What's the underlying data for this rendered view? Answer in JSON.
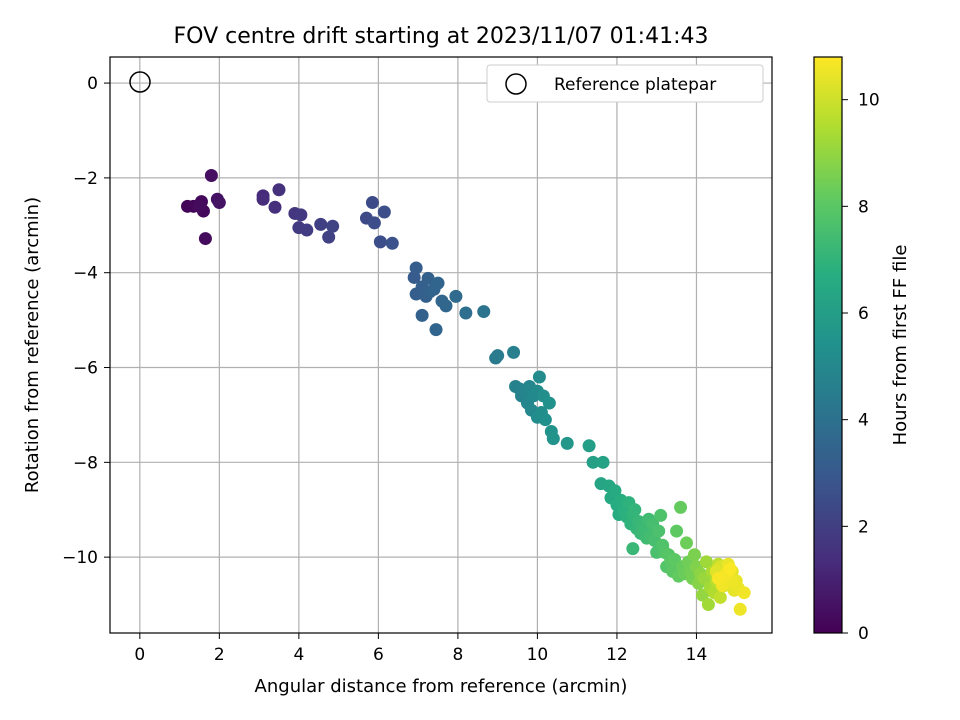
{
  "chart_data": {
    "type": "scatter",
    "title": "FOV centre drift starting at 2023/11/07 01:41:43",
    "xlabel": "Angular distance from reference (arcmin)",
    "ylabel": "Rotation from reference (arcmin)",
    "xlim": [
      -0.75,
      15.9
    ],
    "ylim": [
      -11.6,
      0.55
    ],
    "xticks": [
      0,
      2,
      4,
      6,
      8,
      10,
      12,
      14
    ],
    "yticks": [
      0,
      -2,
      -4,
      -6,
      -8,
      -10
    ],
    "xtick_labels": [
      "0",
      "2",
      "4",
      "6",
      "8",
      "10",
      "12",
      "14"
    ],
    "ytick_labels": [
      "0",
      "−2",
      "−4",
      "−6",
      "−8",
      "−10"
    ],
    "grid": true,
    "legend": {
      "position": "top-right",
      "entries": [
        "Reference platepar"
      ]
    },
    "reference_point": {
      "x": 0,
      "y": 0,
      "marker": "open-circle"
    },
    "colorbar": {
      "label": "Hours from first FF file",
      "range": [
        0,
        10.8
      ],
      "ticks": [
        0,
        2,
        4,
        6,
        8,
        10
      ],
      "tick_labels": [
        "0",
        "2",
        "4",
        "6",
        "8",
        "10"
      ],
      "colormap": "viridis"
    },
    "points": [
      [
        1.2,
        -2.6,
        0.1
      ],
      [
        1.35,
        -2.6,
        0.15
      ],
      [
        1.55,
        -2.5,
        0.2
      ],
      [
        1.6,
        -2.7,
        0.25
      ],
      [
        1.5,
        -2.6,
        0.3
      ],
      [
        1.65,
        -3.28,
        0.35
      ],
      [
        1.8,
        -1.95,
        0.4
      ],
      [
        1.95,
        -2.45,
        0.5
      ],
      [
        2.0,
        -2.52,
        0.55
      ],
      [
        3.1,
        -2.38,
        1.3
      ],
      [
        3.1,
        -2.45,
        1.35
      ],
      [
        3.4,
        -2.62,
        1.45
      ],
      [
        3.5,
        -2.25,
        1.5
      ],
      [
        3.9,
        -2.75,
        1.7
      ],
      [
        4.05,
        -2.78,
        1.8
      ],
      [
        4.0,
        -3.05,
        1.85
      ],
      [
        4.2,
        -3.1,
        1.9
      ],
      [
        4.55,
        -2.98,
        2.0
      ],
      [
        4.75,
        -3.25,
        2.1
      ],
      [
        4.85,
        -3.02,
        2.15
      ],
      [
        5.7,
        -2.85,
        2.4
      ],
      [
        5.85,
        -2.52,
        2.45
      ],
      [
        5.9,
        -2.95,
        2.5
      ],
      [
        6.05,
        -3.35,
        2.55
      ],
      [
        6.15,
        -2.72,
        2.6
      ],
      [
        6.35,
        -3.38,
        2.7
      ],
      [
        6.9,
        -4.1,
        3.1
      ],
      [
        6.95,
        -3.9,
        3.15
      ],
      [
        6.95,
        -4.45,
        3.2
      ],
      [
        7.1,
        -4.3,
        3.25
      ],
      [
        7.2,
        -4.5,
        3.3
      ],
      [
        7.25,
        -4.12,
        3.35
      ],
      [
        7.3,
        -4.4,
        3.4
      ],
      [
        7.4,
        -4.35,
        3.45
      ],
      [
        7.5,
        -4.22,
        3.5
      ],
      [
        7.6,
        -4.6,
        3.55
      ],
      [
        7.7,
        -4.7,
        3.6
      ],
      [
        7.1,
        -4.9,
        3.3
      ],
      [
        7.45,
        -5.2,
        3.5
      ],
      [
        7.95,
        -4.5,
        3.7
      ],
      [
        8.2,
        -4.85,
        3.9
      ],
      [
        8.65,
        -4.82,
        4.1
      ],
      [
        8.95,
        -5.8,
        4.4
      ],
      [
        9.0,
        -5.75,
        4.45
      ],
      [
        9.4,
        -5.68,
        4.6
      ],
      [
        9.45,
        -6.4,
        4.7
      ],
      [
        9.55,
        -6.45,
        4.75
      ],
      [
        9.6,
        -6.6,
        4.8
      ],
      [
        9.7,
        -6.5,
        4.85
      ],
      [
        9.75,
        -6.75,
        4.9
      ],
      [
        9.8,
        -6.4,
        4.95
      ],
      [
        9.85,
        -6.9,
        5.0
      ],
      [
        9.9,
        -6.6,
        5.05
      ],
      [
        10.0,
        -6.5,
        5.1
      ],
      [
        10.05,
        -6.2,
        5.15
      ],
      [
        10.0,
        -7.05,
        5.2
      ],
      [
        10.1,
        -6.95,
        5.25
      ],
      [
        10.15,
        -6.6,
        5.3
      ],
      [
        10.2,
        -7.1,
        5.35
      ],
      [
        10.3,
        -6.75,
        5.4
      ],
      [
        10.35,
        -7.35,
        5.5
      ],
      [
        10.4,
        -7.5,
        5.55
      ],
      [
        10.75,
        -7.6,
        5.7
      ],
      [
        11.3,
        -7.65,
        6.0
      ],
      [
        11.4,
        -8.0,
        6.1
      ],
      [
        11.65,
        -8.0,
        6.2
      ],
      [
        11.6,
        -8.45,
        6.3
      ],
      [
        11.8,
        -8.5,
        6.4
      ],
      [
        11.85,
        -8.75,
        6.45
      ],
      [
        11.95,
        -8.6,
        6.5
      ],
      [
        12.0,
        -8.9,
        6.6
      ],
      [
        12.05,
        -9.1,
        6.65
      ],
      [
        12.1,
        -8.8,
        6.7
      ],
      [
        12.15,
        -8.95,
        6.75
      ],
      [
        12.2,
        -9.05,
        6.8
      ],
      [
        12.25,
        -9.15,
        6.85
      ],
      [
        12.3,
        -8.85,
        6.9
      ],
      [
        12.35,
        -9.3,
        6.95
      ],
      [
        12.4,
        -9.1,
        7.0
      ],
      [
        12.45,
        -9.0,
        7.05
      ],
      [
        12.5,
        -9.4,
        7.1
      ],
      [
        12.55,
        -9.25,
        7.15
      ],
      [
        12.6,
        -9.5,
        7.2
      ],
      [
        12.65,
        -9.35,
        7.25
      ],
      [
        12.7,
        -9.45,
        7.3
      ],
      [
        12.4,
        -9.82,
        7.2
      ],
      [
        12.75,
        -9.6,
        7.35
      ],
      [
        12.8,
        -9.2,
        7.4
      ],
      [
        12.85,
        -9.55,
        7.45
      ],
      [
        12.9,
        -9.3,
        7.5
      ],
      [
        12.95,
        -9.65,
        7.55
      ],
      [
        13.0,
        -9.9,
        7.6
      ],
      [
        13.05,
        -9.45,
        7.65
      ],
      [
        13.1,
        -9.12,
        7.7
      ],
      [
        13.15,
        -9.75,
        7.75
      ],
      [
        13.2,
        -9.9,
        7.8
      ],
      [
        13.25,
        -10.2,
        7.85
      ],
      [
        13.3,
        -9.95,
        7.9
      ],
      [
        13.35,
        -10.1,
        7.95
      ],
      [
        13.4,
        -10.3,
        8.0
      ],
      [
        13.45,
        -10.05,
        8.05
      ],
      [
        13.5,
        -9.45,
        8.1
      ],
      [
        13.55,
        -10.4,
        8.15
      ],
      [
        13.6,
        -8.95,
        8.2
      ],
      [
        13.65,
        -10.2,
        8.25
      ],
      [
        13.7,
        -10.35,
        8.3
      ],
      [
        13.75,
        -9.7,
        8.35
      ],
      [
        13.8,
        -10.1,
        8.4
      ],
      [
        13.85,
        -10.3,
        8.45
      ],
      [
        13.9,
        -10.45,
        8.5
      ],
      [
        13.95,
        -9.95,
        8.6
      ],
      [
        14.0,
        -10.2,
        8.7
      ],
      [
        14.05,
        -10.55,
        8.8
      ],
      [
        14.1,
        -10.35,
        8.9
      ],
      [
        14.15,
        -10.8,
        9.0
      ],
      [
        14.2,
        -10.45,
        9.1
      ],
      [
        14.25,
        -10.1,
        9.2
      ],
      [
        14.3,
        -11.0,
        9.25
      ],
      [
        14.35,
        -10.65,
        9.3
      ],
      [
        14.4,
        -10.3,
        9.4
      ],
      [
        14.45,
        -10.75,
        9.5
      ],
      [
        14.5,
        -10.5,
        9.6
      ],
      [
        14.55,
        -10.15,
        9.7
      ],
      [
        14.6,
        -10.85,
        9.8
      ],
      [
        14.65,
        -10.4,
        9.9
      ],
      [
        14.7,
        -10.6,
        10.0
      ],
      [
        14.75,
        -10.25,
        10.1
      ],
      [
        14.8,
        -10.55,
        10.2
      ],
      [
        14.85,
        -10.45,
        10.3
      ],
      [
        14.9,
        -10.3,
        10.35
      ],
      [
        14.95,
        -10.7,
        10.4
      ],
      [
        15.0,
        -10.5,
        10.45
      ],
      [
        15.05,
        -10.65,
        10.5
      ],
      [
        15.1,
        -11.1,
        10.55
      ],
      [
        15.2,
        -10.75,
        10.6
      ],
      [
        14.6,
        -10.2,
        10.2
      ],
      [
        14.5,
        -10.3,
        10.3
      ],
      [
        14.7,
        -10.4,
        10.4
      ],
      [
        14.8,
        -10.15,
        10.5
      ],
      [
        14.9,
        -10.5,
        10.55
      ],
      [
        14.65,
        -10.6,
        10.6
      ],
      [
        14.75,
        -10.35,
        10.65
      ],
      [
        14.55,
        -10.45,
        10.7
      ],
      [
        14.85,
        -10.25,
        10.75
      ]
    ]
  }
}
